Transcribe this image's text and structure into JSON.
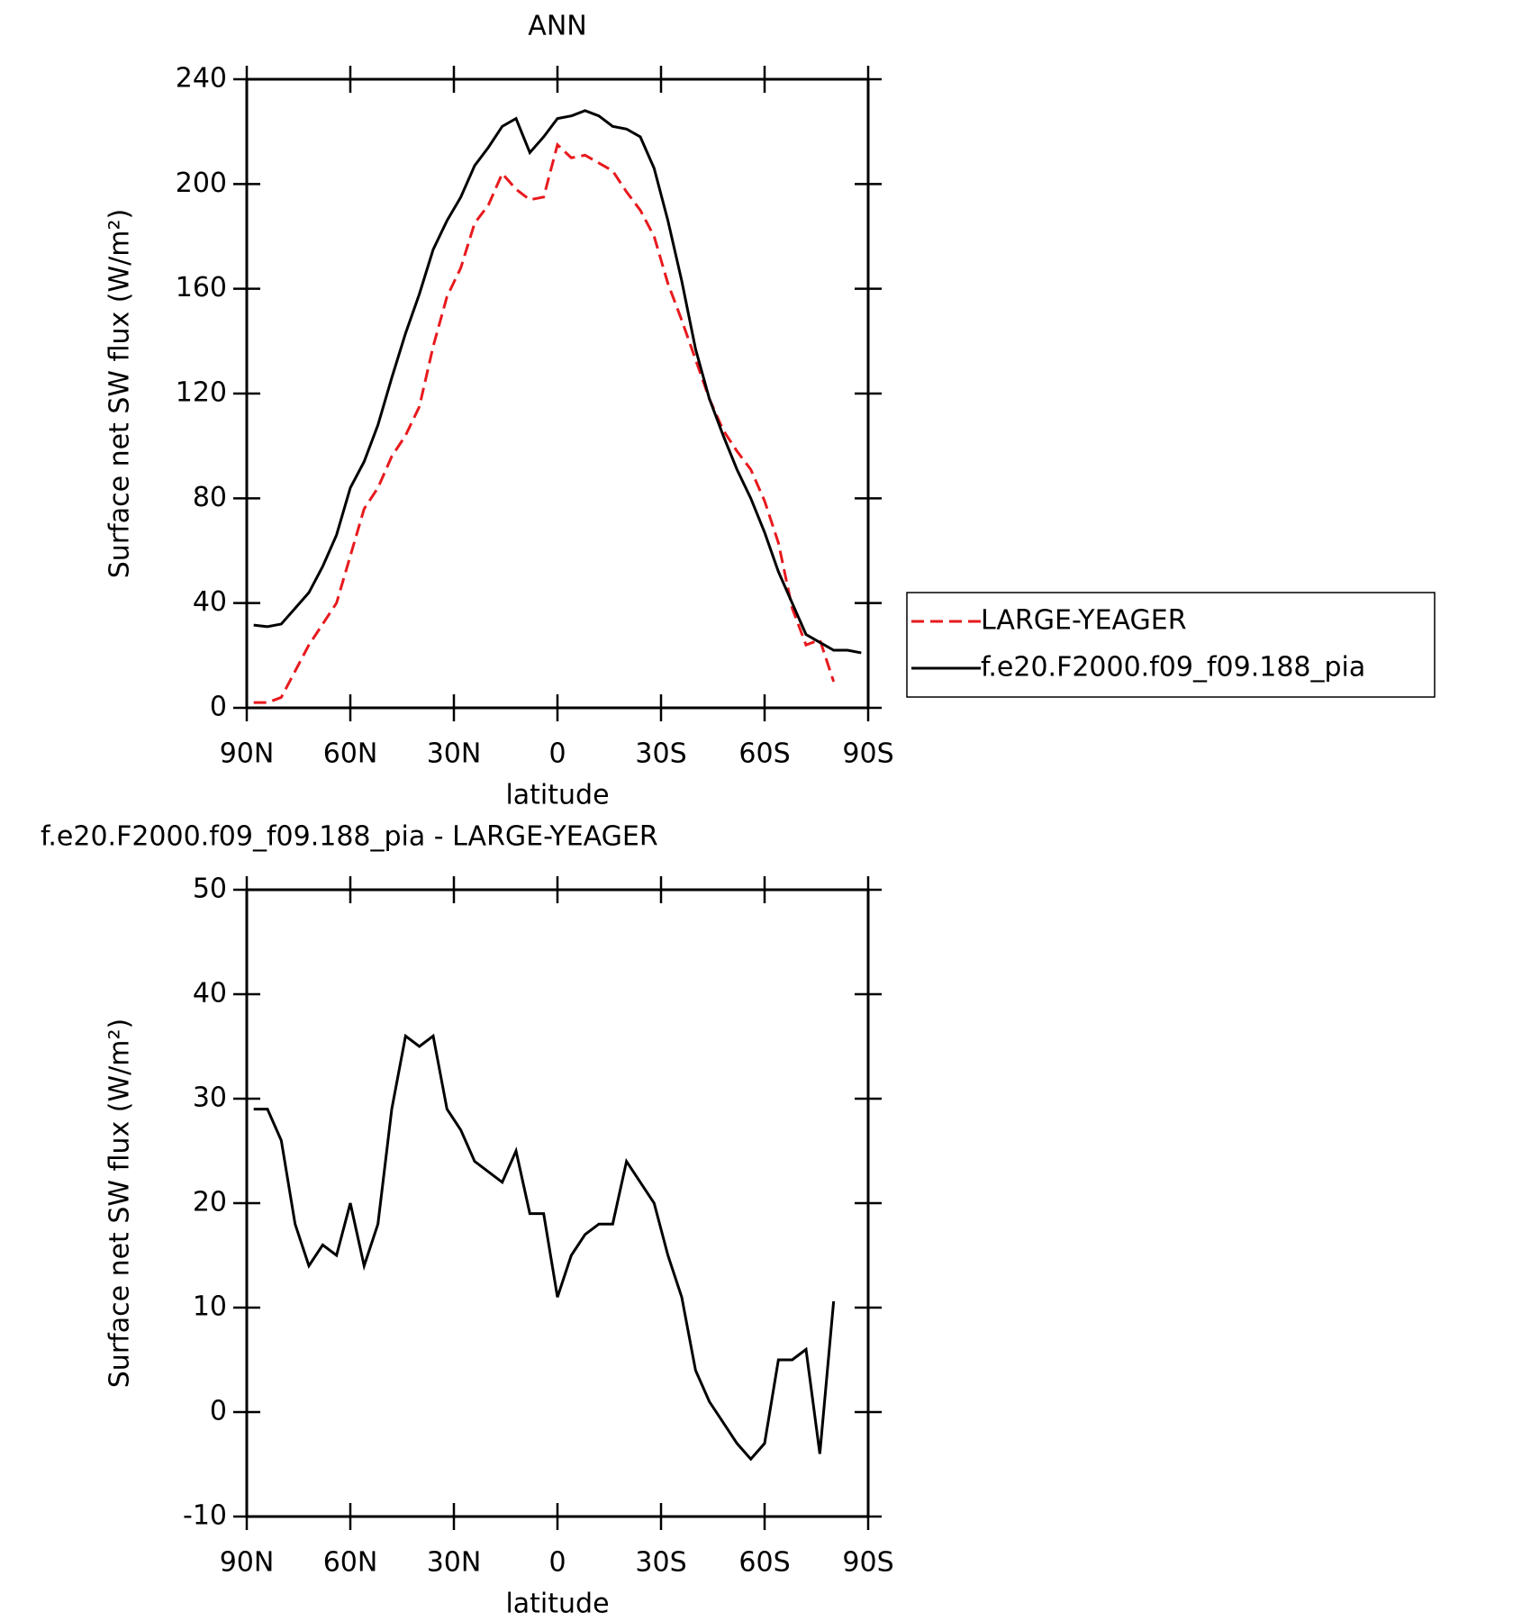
{
  "chart_data": [
    {
      "type": "line",
      "title": "ANN",
      "ylabel": "Surface net SW flux (W/m²)",
      "xlabel": "latitude",
      "xlim": [
        90,
        -90
      ],
      "xticks": [
        {
          "value": 90,
          "label": "90N"
        },
        {
          "value": 60,
          "label": "60N"
        },
        {
          "value": 30,
          "label": "30N"
        },
        0,
        {
          "value": -30,
          "label": "30S"
        },
        {
          "value": -60,
          "label": "60S"
        },
        {
          "value": -90,
          "label": "90S"
        }
      ],
      "ylim": [
        0,
        240
      ],
      "yticks": [
        0,
        40,
        80,
        120,
        160,
        200,
        240
      ],
      "legend": "right",
      "x": [
        88,
        84,
        80,
        76,
        72,
        68,
        64,
        60,
        56,
        52,
        48,
        44,
        40,
        36,
        32,
        28,
        24,
        20,
        16,
        12,
        8,
        4,
        0,
        -4,
        -8,
        -12,
        -16,
        -20,
        -24,
        -28,
        -32,
        -36,
        -40,
        -44,
        -48,
        -52,
        -56,
        -60,
        -64,
        -68,
        -72,
        -76,
        -80,
        -84,
        -88
      ],
      "series": [
        {
          "name": "LARGE-YEAGER",
          "color": "#e8191d",
          "line_style": "dashed",
          "values": [
            2,
            2,
            4,
            14,
            24,
            32,
            40,
            58,
            76,
            84,
            96,
            104,
            115,
            138,
            157,
            168,
            185,
            192,
            204,
            198,
            194,
            195,
            215,
            210,
            211,
            208,
            205,
            197,
            190,
            180,
            162,
            148,
            133,
            118,
            106,
            98,
            91,
            79,
            63,
            38,
            24,
            26,
            10,
            null,
            null
          ]
        },
        {
          "name": "f.e20.F2000.f09_f09.188_pia",
          "color": "#000000",
          "line_style": "solid",
          "values": [
            31.6,
            31,
            32,
            38,
            44,
            54,
            66,
            84,
            94,
            108,
            126,
            143,
            158,
            175,
            186,
            195,
            207,
            214,
            222,
            225,
            212,
            218,
            225,
            226,
            228,
            226,
            222,
            221,
            218,
            206,
            186,
            163,
            137,
            118,
            104,
            91,
            80,
            67,
            52,
            40,
            28,
            25,
            22,
            22,
            21
          ]
        }
      ]
    },
    {
      "type": "line",
      "title": "f.e20.F2000.f09_f09.188_pia - LARGE-YEAGER",
      "ylabel": "Surface net SW flux (W/m²)",
      "xlabel": "latitude",
      "xlim": [
        90,
        -90
      ],
      "xticks": [
        {
          "value": 90,
          "label": "90N"
        },
        {
          "value": 60,
          "label": "60N"
        },
        {
          "value": 30,
          "label": "30N"
        },
        0,
        {
          "value": -30,
          "label": "30S"
        },
        {
          "value": -60,
          "label": "60S"
        },
        {
          "value": -90,
          "label": "90S"
        }
      ],
      "ylim": [
        -10,
        50
      ],
      "yticks": [
        -10,
        0,
        10,
        20,
        30,
        40,
        50
      ],
      "x": [
        88,
        84,
        80,
        76,
        72,
        68,
        64,
        60,
        56,
        52,
        48,
        44,
        40,
        36,
        32,
        28,
        24,
        20,
        16,
        12,
        8,
        4,
        0,
        -4,
        -8,
        -12,
        -16,
        -20,
        -24,
        -28,
        -32,
        -36,
        -40,
        -44,
        -48,
        -52,
        -56,
        -60,
        -64,
        -68,
        -72,
        -76,
        -80,
        -84,
        -88
      ],
      "color": "#000000",
      "values": [
        29,
        29,
        26,
        18,
        14,
        16,
        15,
        20,
        14,
        18,
        29,
        36,
        35,
        36,
        29,
        27,
        24,
        23,
        22,
        25,
        19,
        19,
        11,
        15,
        17,
        18,
        18,
        24,
        22,
        20,
        15,
        11,
        4,
        1,
        -1,
        -3,
        -4.5,
        -3,
        5,
        5,
        6,
        -4,
        10.6,
        null,
        null
      ]
    }
  ]
}
